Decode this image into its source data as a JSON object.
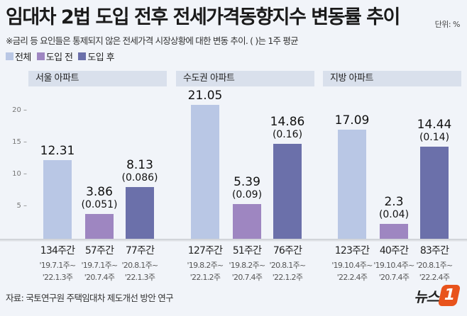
{
  "header": {
    "title": "임대차 2법 도입 전후 전세가격동향지수 변동률 추이",
    "unit": "단위: %",
    "note": "※금리 등 요인들은 통제되지 않은 전세가격 시장상황에 대한 변동 추이. ( )는 1주 평균"
  },
  "colors": {
    "전체": "#b9c7e5",
    "도입 전": "#9e86c1",
    "도입 후": "#6b70aa"
  },
  "chart_data": {
    "type": "bar",
    "ylim": [
      0,
      22
    ],
    "yticks": [
      "5",
      "10",
      "15",
      "20"
    ],
    "legend": [
      "전체",
      "도입 전",
      "도입 후"
    ],
    "legend_placement": "top-left",
    "panels": [
      {
        "title": "서울 아파트",
        "bars": [
          {
            "series": "전체",
            "value": 12.31,
            "label": "12.31",
            "weekly": "",
            "weeks": "134주간",
            "from": "'19.7.1주~",
            "to": "'22.1.3주"
          },
          {
            "series": "도입 전",
            "value": 3.86,
            "label": "3.86",
            "weekly": "(0.051)",
            "weeks": "57주간",
            "from": "'19.7.1주~",
            "to": "'20.7.4주"
          },
          {
            "series": "도입 후",
            "value": 8.13,
            "label": "8.13",
            "weekly": "(0.086)",
            "weeks": "77주간",
            "from": "'20.8.1주~",
            "to": "'22.1.3주"
          }
        ]
      },
      {
        "title": "수도권 아파트",
        "bars": [
          {
            "series": "전체",
            "value": 21.05,
            "label": "21.05",
            "weekly": "",
            "weeks": "127주간",
            "from": "'19.8.2주~",
            "to": "'22.1.2주"
          },
          {
            "series": "도입 전",
            "value": 5.39,
            "label": "5.39",
            "weekly": "(0.09)",
            "weeks": "51주간",
            "from": "'19.8.2주~",
            "to": "'20.7.4주"
          },
          {
            "series": "도입 후",
            "value": 14.86,
            "label": "14.86",
            "weekly": "(0.16)",
            "weeks": "76주간",
            "from": "'20.8.1주~",
            "to": "'22.1.2주"
          }
        ]
      },
      {
        "title": "지방 아파트",
        "bars": [
          {
            "series": "전체",
            "value": 17.09,
            "label": "17.09",
            "weekly": "",
            "weeks": "123주간",
            "from": "'19.10.4주~",
            "to": "'22.2.4주"
          },
          {
            "series": "도입 전",
            "value": 2.3,
            "label": "2.3",
            "weekly": "(0.04)",
            "weeks": "40주간",
            "from": "'19.10.4주~",
            "to": "'20.7.4주"
          },
          {
            "series": "도입 후",
            "value": 14.44,
            "label": "14.44",
            "weekly": "(0.14)",
            "weeks": "83주간",
            "from": "'20.8.1주~",
            "to": "'22.2.4주"
          }
        ]
      }
    ]
  },
  "footer": {
    "source": "자료: 국토연구원 주택임대차 제도개선 방안 연구",
    "logo": "뉴스1"
  }
}
